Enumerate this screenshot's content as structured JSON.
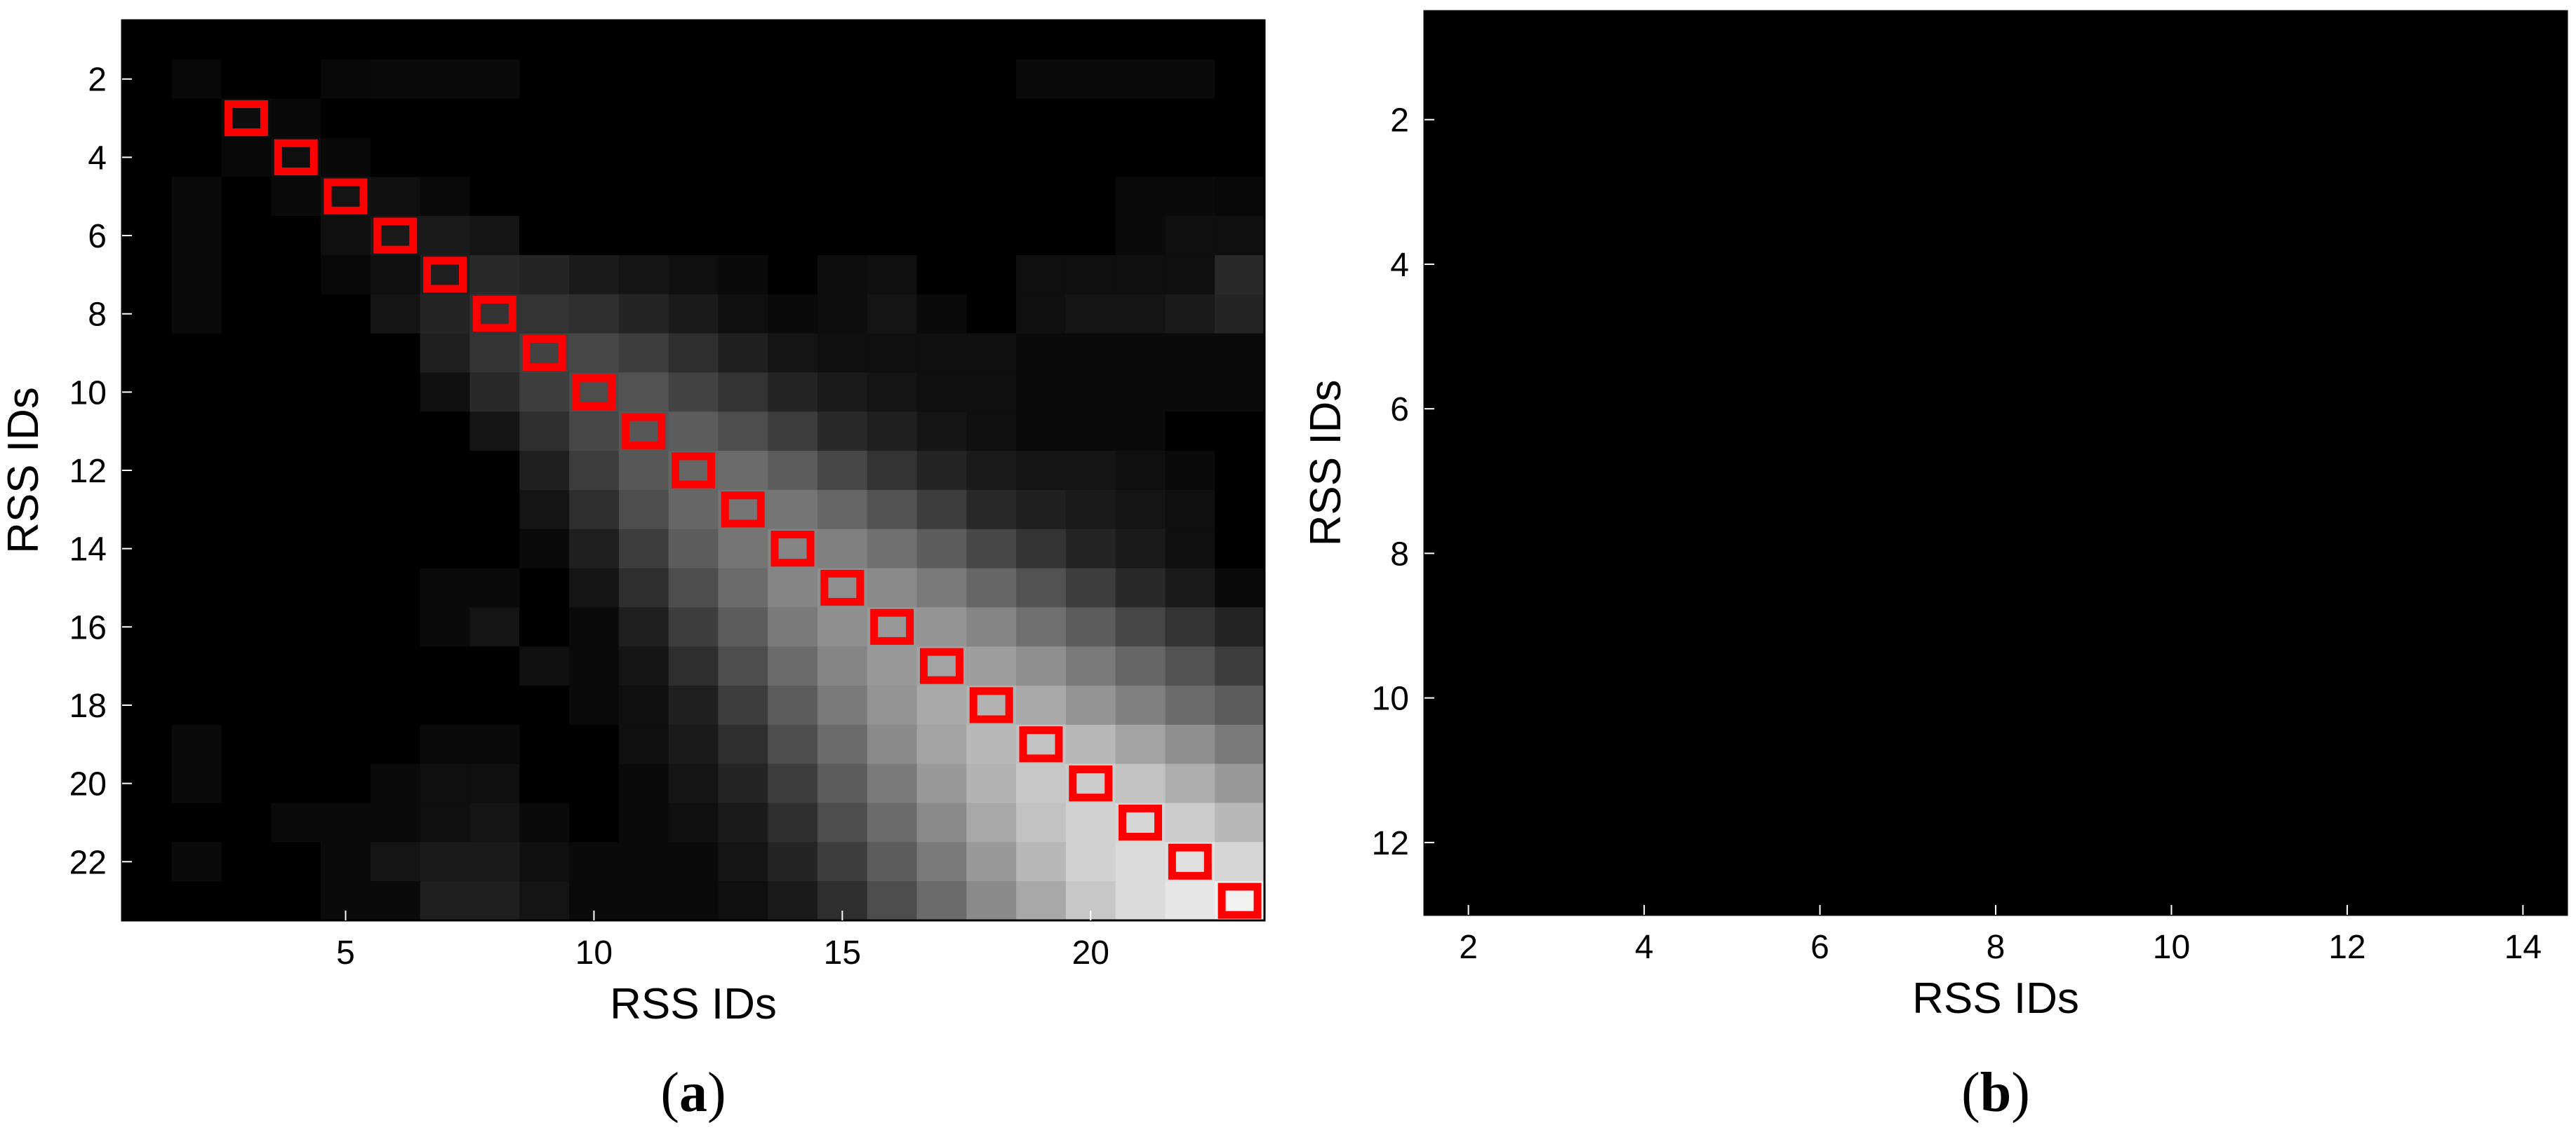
{
  "chart_data": [
    {
      "type": "heatmap",
      "panel": "(a)",
      "panel_letter": "a",
      "xlabel": "RSS IDs",
      "ylabel": "RSS IDs",
      "xlim": [
        0.5,
        23.5
      ],
      "ylim": [
        0.5,
        23.5
      ],
      "y_reversed": true,
      "xticks": [
        5,
        10,
        15,
        20
      ],
      "yticks": [
        2,
        4,
        6,
        8,
        10,
        12,
        14,
        16,
        18,
        20,
        22
      ],
      "colormap": "gray",
      "highlight_color": "#ff0000",
      "highlighted_cells": [
        [
          3,
          3
        ],
        [
          4,
          4
        ],
        [
          5,
          5
        ],
        [
          6,
          6
        ],
        [
          7,
          7
        ],
        [
          8,
          8
        ],
        [
          9,
          9
        ],
        [
          10,
          10
        ],
        [
          11,
          11
        ],
        [
          12,
          12
        ],
        [
          13,
          13
        ],
        [
          14,
          14
        ],
        [
          15,
          15
        ],
        [
          16,
          16
        ],
        [
          17,
          17
        ],
        [
          18,
          18
        ],
        [
          19,
          19
        ],
        [
          20,
          20
        ],
        [
          21,
          21
        ],
        [
          22,
          22
        ],
        [
          23,
          23
        ]
      ],
      "matrix": [
        [
          0.0,
          0.0,
          0.0,
          0.0,
          0.0,
          0.0,
          0.0,
          0.0,
          0.0,
          0.0,
          0.0,
          0.0,
          0.0,
          0.0,
          0.0,
          0.0,
          0.0,
          0.0,
          0.0,
          0.0,
          0.0,
          0.0,
          0.0
        ],
        [
          0.0,
          0.03,
          0.0,
          0.0,
          0.03,
          0.04,
          0.04,
          0.04,
          0.0,
          0.0,
          0.0,
          0.0,
          0.0,
          0.0,
          0.0,
          0.0,
          0.0,
          0.0,
          0.04,
          0.04,
          0.04,
          0.04,
          0.0
        ],
        [
          0.0,
          0.0,
          0.05,
          0.03,
          0.0,
          0.0,
          0.0,
          0.0,
          0.0,
          0.0,
          0.0,
          0.0,
          0.0,
          0.0,
          0.0,
          0.0,
          0.0,
          0.0,
          0.0,
          0.0,
          0.0,
          0.0,
          0.0
        ],
        [
          0.0,
          0.0,
          0.03,
          0.06,
          0.03,
          0.0,
          0.0,
          0.0,
          0.0,
          0.0,
          0.0,
          0.0,
          0.0,
          0.0,
          0.0,
          0.0,
          0.0,
          0.0,
          0.0,
          0.0,
          0.0,
          0.0,
          0.0
        ],
        [
          0.0,
          0.04,
          0.0,
          0.04,
          0.08,
          0.06,
          0.04,
          0.0,
          0.0,
          0.0,
          0.0,
          0.0,
          0.0,
          0.0,
          0.0,
          0.0,
          0.0,
          0.0,
          0.0,
          0.0,
          0.04,
          0.04,
          0.03
        ],
        [
          0.0,
          0.04,
          0.0,
          0.0,
          0.06,
          0.1,
          0.1,
          0.08,
          0.0,
          0.0,
          0.0,
          0.0,
          0.0,
          0.0,
          0.0,
          0.0,
          0.0,
          0.0,
          0.0,
          0.0,
          0.04,
          0.06,
          0.06
        ],
        [
          0.0,
          0.04,
          0.0,
          0.0,
          0.03,
          0.06,
          0.12,
          0.16,
          0.14,
          0.1,
          0.08,
          0.06,
          0.04,
          0.0,
          0.05,
          0.06,
          0.0,
          0.0,
          0.06,
          0.06,
          0.06,
          0.06,
          0.16
        ],
        [
          0.0,
          0.04,
          0.0,
          0.0,
          0.0,
          0.08,
          0.14,
          0.2,
          0.2,
          0.18,
          0.14,
          0.1,
          0.06,
          0.04,
          0.05,
          0.08,
          0.04,
          0.0,
          0.06,
          0.08,
          0.08,
          0.1,
          0.14
        ],
        [
          0.0,
          0.0,
          0.0,
          0.0,
          0.0,
          0.0,
          0.12,
          0.2,
          0.26,
          0.28,
          0.24,
          0.18,
          0.12,
          0.08,
          0.06,
          0.06,
          0.06,
          0.06,
          0.04,
          0.04,
          0.04,
          0.04,
          0.04
        ],
        [
          0.0,
          0.0,
          0.0,
          0.0,
          0.0,
          0.0,
          0.06,
          0.16,
          0.24,
          0.3,
          0.32,
          0.26,
          0.2,
          0.14,
          0.1,
          0.08,
          0.06,
          0.06,
          0.04,
          0.04,
          0.04,
          0.04,
          0.04
        ],
        [
          0.0,
          0.0,
          0.0,
          0.0,
          0.0,
          0.0,
          0.0,
          0.08,
          0.18,
          0.28,
          0.34,
          0.36,
          0.3,
          0.24,
          0.16,
          0.12,
          0.08,
          0.06,
          0.04,
          0.04,
          0.04,
          0.0,
          0.0
        ],
        [
          0.0,
          0.0,
          0.0,
          0.0,
          0.0,
          0.0,
          0.0,
          0.0,
          0.12,
          0.24,
          0.34,
          0.4,
          0.42,
          0.36,
          0.28,
          0.2,
          0.14,
          0.1,
          0.08,
          0.08,
          0.06,
          0.04,
          0.0
        ],
        [
          0.0,
          0.0,
          0.0,
          0.0,
          0.0,
          0.0,
          0.0,
          0.0,
          0.08,
          0.18,
          0.3,
          0.4,
          0.46,
          0.46,
          0.4,
          0.32,
          0.24,
          0.16,
          0.12,
          0.1,
          0.08,
          0.06,
          0.0
        ],
        [
          0.0,
          0.0,
          0.0,
          0.0,
          0.0,
          0.0,
          0.0,
          0.0,
          0.04,
          0.12,
          0.24,
          0.36,
          0.46,
          0.52,
          0.5,
          0.44,
          0.36,
          0.28,
          0.2,
          0.14,
          0.1,
          0.06,
          0.0
        ],
        [
          0.0,
          0.0,
          0.0,
          0.0,
          0.0,
          0.0,
          0.04,
          0.04,
          0.0,
          0.08,
          0.18,
          0.3,
          0.42,
          0.52,
          0.56,
          0.54,
          0.48,
          0.4,
          0.32,
          0.24,
          0.16,
          0.1,
          0.04
        ],
        [
          0.0,
          0.0,
          0.0,
          0.0,
          0.0,
          0.0,
          0.04,
          0.08,
          0.0,
          0.04,
          0.12,
          0.24,
          0.36,
          0.48,
          0.56,
          0.6,
          0.58,
          0.52,
          0.44,
          0.36,
          0.28,
          0.2,
          0.14
        ],
        [
          0.0,
          0.0,
          0.0,
          0.0,
          0.0,
          0.0,
          0.0,
          0.0,
          0.06,
          0.04,
          0.08,
          0.18,
          0.3,
          0.42,
          0.52,
          0.6,
          0.64,
          0.62,
          0.56,
          0.48,
          0.4,
          0.32,
          0.24
        ],
        [
          0.0,
          0.0,
          0.0,
          0.0,
          0.0,
          0.0,
          0.0,
          0.0,
          0.0,
          0.04,
          0.06,
          0.12,
          0.24,
          0.36,
          0.48,
          0.58,
          0.66,
          0.7,
          0.66,
          0.58,
          0.5,
          0.42,
          0.36
        ],
        [
          0.0,
          0.04,
          0.0,
          0.0,
          0.0,
          0.0,
          0.04,
          0.04,
          0.0,
          0.0,
          0.06,
          0.1,
          0.18,
          0.3,
          0.42,
          0.54,
          0.64,
          0.72,
          0.76,
          0.72,
          0.64,
          0.56,
          0.48
        ],
        [
          0.0,
          0.04,
          0.0,
          0.0,
          0.0,
          0.04,
          0.06,
          0.06,
          0.0,
          0.0,
          0.04,
          0.08,
          0.14,
          0.24,
          0.36,
          0.48,
          0.6,
          0.7,
          0.78,
          0.8,
          0.76,
          0.68,
          0.6
        ],
        [
          0.0,
          0.0,
          0.0,
          0.04,
          0.04,
          0.04,
          0.06,
          0.08,
          0.04,
          0.0,
          0.04,
          0.06,
          0.1,
          0.18,
          0.3,
          0.42,
          0.54,
          0.66,
          0.76,
          0.82,
          0.84,
          0.8,
          0.72
        ],
        [
          0.0,
          0.04,
          0.0,
          0.0,
          0.04,
          0.08,
          0.1,
          0.1,
          0.06,
          0.04,
          0.04,
          0.04,
          0.08,
          0.14,
          0.24,
          0.36,
          0.48,
          0.6,
          0.72,
          0.82,
          0.86,
          0.88,
          0.84
        ],
        [
          0.0,
          0.0,
          0.0,
          0.0,
          0.04,
          0.04,
          0.12,
          0.12,
          0.08,
          0.04,
          0.04,
          0.04,
          0.06,
          0.1,
          0.18,
          0.3,
          0.42,
          0.54,
          0.66,
          0.78,
          0.86,
          0.9,
          0.94
        ]
      ]
    },
    {
      "type": "heatmap",
      "panel": "(b)",
      "panel_letter": "b",
      "xlabel": "RSS IDs",
      "ylabel": "RSS IDs",
      "xlim": [
        1.5,
        14.5
      ],
      "ylim": [
        0.5,
        13.0
      ],
      "y_reversed": true,
      "xticks": [
        2,
        4,
        6,
        8,
        10,
        12,
        14
      ],
      "yticks": [
        2,
        4,
        6,
        8,
        10,
        12
      ],
      "colormap": "gray",
      "fill_value": 0
    }
  ]
}
